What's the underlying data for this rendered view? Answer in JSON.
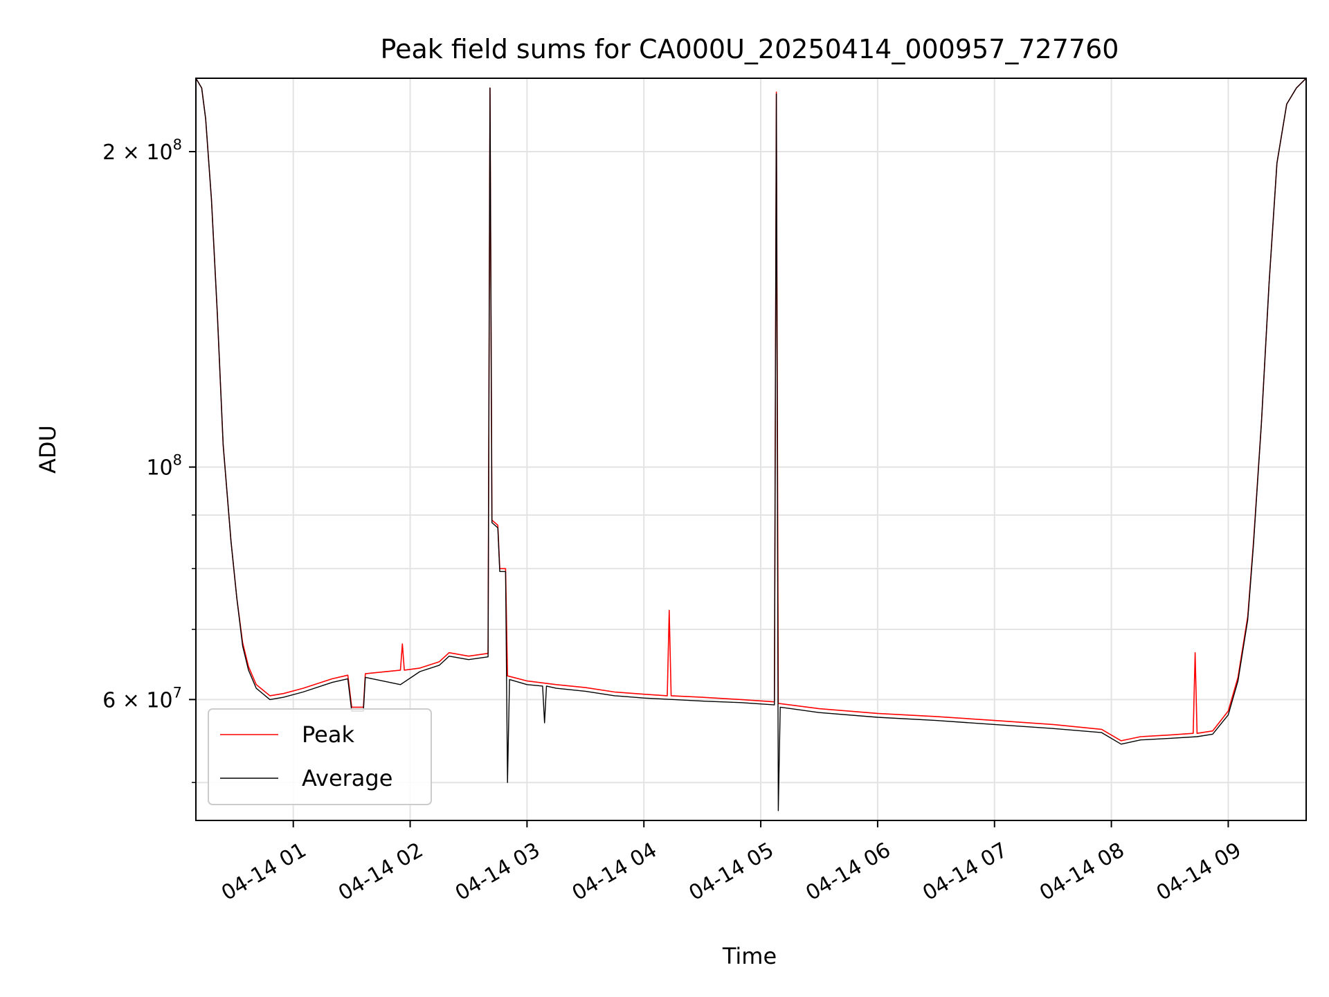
{
  "chart_data": {
    "type": "line",
    "title": "Peak field sums for CA000U_20250414_000957_727760",
    "xlabel": "Time",
    "ylabel": "ADU",
    "y_scale": "log",
    "ylim": [
      46000000,
      235000000
    ],
    "xlim": [
      "2025-04-14T00:10",
      "2025-04-14T09:40"
    ],
    "grid": true,
    "legend_position": "lower-left",
    "x_ticks": [
      {
        "time": "2025-04-14T01:00",
        "label": "04-14 01"
      },
      {
        "time": "2025-04-14T02:00",
        "label": "04-14 02"
      },
      {
        "time": "2025-04-14T03:00",
        "label": "04-14 03"
      },
      {
        "time": "2025-04-14T04:00",
        "label": "04-14 04"
      },
      {
        "time": "2025-04-14T05:00",
        "label": "04-14 05"
      },
      {
        "time": "2025-04-14T06:00",
        "label": "04-14 06"
      },
      {
        "time": "2025-04-14T07:00",
        "label": "04-14 07"
      },
      {
        "time": "2025-04-14T08:00",
        "label": "04-14 08"
      },
      {
        "time": "2025-04-14T09:00",
        "label": "04-14 09"
      }
    ],
    "y_major_ticks": [
      {
        "value": 60000000,
        "label_base": "6 × 10",
        "label_exp": "7"
      },
      {
        "value": 100000000,
        "label_base": "10",
        "label_exp": "8"
      },
      {
        "value": 200000000,
        "label_base": "2 × 10",
        "label_exp": "8"
      }
    ],
    "y_minor_ticks": [
      50000000,
      70000000,
      80000000,
      90000000
    ],
    "series": [
      {
        "name": "Peak",
        "color": "#ff0000",
        "points": [
          [
            "2025-04-14T00:10",
            235000000
          ],
          [
            "2025-04-14T00:13",
            230000000
          ],
          [
            "2025-04-14T00:15",
            215000000
          ],
          [
            "2025-04-14T00:18",
            180000000
          ],
          [
            "2025-04-14T00:21",
            140000000
          ],
          [
            "2025-04-14T00:24",
            105000000
          ],
          [
            "2025-04-14T00:28",
            85000000
          ],
          [
            "2025-04-14T00:31",
            75000000
          ],
          [
            "2025-04-14T00:34",
            68000000
          ],
          [
            "2025-04-14T00:37",
            64500000
          ],
          [
            "2025-04-14T00:41",
            62000000
          ],
          [
            "2025-04-14T00:48",
            60500000
          ],
          [
            "2025-04-14T00:55",
            60800000
          ],
          [
            "2025-04-14T01:05",
            61500000
          ],
          [
            "2025-04-14T01:20",
            62800000
          ],
          [
            "2025-04-14T01:28",
            63300000
          ],
          [
            "2025-04-14T01:30",
            59000000
          ],
          [
            "2025-04-14T01:36",
            59000000
          ],
          [
            "2025-04-14T01:37",
            63500000
          ],
          [
            "2025-04-14T01:55",
            64000000
          ],
          [
            "2025-04-14T01:56",
            67800000
          ],
          [
            "2025-04-14T01:57",
            64000000
          ],
          [
            "2025-04-14T02:05",
            64300000
          ],
          [
            "2025-04-14T02:15",
            65200000
          ],
          [
            "2025-04-14T02:20",
            66500000
          ],
          [
            "2025-04-14T02:30",
            66000000
          ],
          [
            "2025-04-14T02:40",
            66400000
          ],
          [
            "2025-04-14T02:41",
            230000000
          ],
          [
            "2025-04-14T02:42",
            89000000
          ],
          [
            "2025-04-14T02:45",
            88000000
          ],
          [
            "2025-04-14T02:46",
            80000000
          ],
          [
            "2025-04-14T02:49",
            80000000
          ],
          [
            "2025-04-14T02:50",
            63200000
          ],
          [
            "2025-04-14T03:00",
            62500000
          ],
          [
            "2025-04-14T03:15",
            62000000
          ],
          [
            "2025-04-14T03:30",
            61600000
          ],
          [
            "2025-04-14T03:45",
            61000000
          ],
          [
            "2025-04-14T04:00",
            60700000
          ],
          [
            "2025-04-14T04:12",
            60500000
          ],
          [
            "2025-04-14T04:13",
            73000000
          ],
          [
            "2025-04-14T04:14",
            60500000
          ],
          [
            "2025-04-14T04:30",
            60300000
          ],
          [
            "2025-04-14T04:50",
            60000000
          ],
          [
            "2025-04-14T05:07",
            59700000
          ],
          [
            "2025-04-14T05:08",
            228000000
          ],
          [
            "2025-04-14T05:09",
            59500000
          ],
          [
            "2025-04-14T05:30",
            58800000
          ],
          [
            "2025-04-14T06:00",
            58200000
          ],
          [
            "2025-04-14T06:30",
            57800000
          ],
          [
            "2025-04-14T07:00",
            57300000
          ],
          [
            "2025-04-14T07:30",
            56800000
          ],
          [
            "2025-04-14T07:55",
            56200000
          ],
          [
            "2025-04-14T08:05",
            54800000
          ],
          [
            "2025-04-14T08:15",
            55300000
          ],
          [
            "2025-04-14T08:30",
            55500000
          ],
          [
            "2025-04-14T08:42",
            55700000
          ],
          [
            "2025-04-14T08:43",
            66500000
          ],
          [
            "2025-04-14T08:44",
            55700000
          ],
          [
            "2025-04-14T08:52",
            56000000
          ],
          [
            "2025-04-14T09:00",
            58500000
          ],
          [
            "2025-04-14T09:05",
            63000000
          ],
          [
            "2025-04-14T09:10",
            72000000
          ],
          [
            "2025-04-14T09:13",
            85000000
          ],
          [
            "2025-04-14T09:17",
            110000000
          ],
          [
            "2025-04-14T09:21",
            150000000
          ],
          [
            "2025-04-14T09:25",
            195000000
          ],
          [
            "2025-04-14T09:30",
            222000000
          ],
          [
            "2025-04-14T09:35",
            230000000
          ],
          [
            "2025-04-14T09:40",
            235000000
          ]
        ]
      },
      {
        "name": "Average",
        "color": "#000000",
        "points": [
          [
            "2025-04-14T00:10",
            235000000
          ],
          [
            "2025-04-14T00:13",
            230000000
          ],
          [
            "2025-04-14T00:15",
            215000000
          ],
          [
            "2025-04-14T00:18",
            180000000
          ],
          [
            "2025-04-14T00:21",
            140000000
          ],
          [
            "2025-04-14T00:24",
            105000000
          ],
          [
            "2025-04-14T00:28",
            85000000
          ],
          [
            "2025-04-14T00:31",
            75000000
          ],
          [
            "2025-04-14T00:34",
            67500000
          ],
          [
            "2025-04-14T00:37",
            64000000
          ],
          [
            "2025-04-14T00:41",
            61500000
          ],
          [
            "2025-04-14T00:48",
            60000000
          ],
          [
            "2025-04-14T00:55",
            60300000
          ],
          [
            "2025-04-14T01:05",
            61000000
          ],
          [
            "2025-04-14T01:20",
            62300000
          ],
          [
            "2025-04-14T01:28",
            62800000
          ],
          [
            "2025-04-14T01:30",
            58500000
          ],
          [
            "2025-04-14T01:36",
            58500000
          ],
          [
            "2025-04-14T01:37",
            63000000
          ],
          [
            "2025-04-14T01:55",
            62000000
          ],
          [
            "2025-04-14T02:05",
            63800000
          ],
          [
            "2025-04-14T02:15",
            64700000
          ],
          [
            "2025-04-14T02:20",
            66000000
          ],
          [
            "2025-04-14T02:30",
            65500000
          ],
          [
            "2025-04-14T02:40",
            65900000
          ],
          [
            "2025-04-14T02:41",
            230000000
          ],
          [
            "2025-04-14T02:42",
            88500000
          ],
          [
            "2025-04-14T02:45",
            87500000
          ],
          [
            "2025-04-14T02:46",
            79500000
          ],
          [
            "2025-04-14T02:49",
            79500000
          ],
          [
            "2025-04-14T02:50",
            50000000
          ],
          [
            "2025-04-14T02:51",
            62700000
          ],
          [
            "2025-04-14T03:00",
            62000000
          ],
          [
            "2025-04-14T03:08",
            61800000
          ],
          [
            "2025-04-14T03:09",
            57000000
          ],
          [
            "2025-04-14T03:10",
            61800000
          ],
          [
            "2025-04-14T03:15",
            61500000
          ],
          [
            "2025-04-14T03:30",
            61100000
          ],
          [
            "2025-04-14T03:45",
            60500000
          ],
          [
            "2025-04-14T04:00",
            60200000
          ],
          [
            "2025-04-14T04:30",
            59800000
          ],
          [
            "2025-04-14T04:50",
            59600000
          ],
          [
            "2025-04-14T05:07",
            59300000
          ],
          [
            "2025-04-14T05:08",
            227000000
          ],
          [
            "2025-04-14T05:09",
            47000000
          ],
          [
            "2025-04-14T05:10",
            59000000
          ],
          [
            "2025-04-14T05:30",
            58300000
          ],
          [
            "2025-04-14T06:00",
            57700000
          ],
          [
            "2025-04-14T06:30",
            57300000
          ],
          [
            "2025-04-14T07:00",
            56800000
          ],
          [
            "2025-04-14T07:30",
            56300000
          ],
          [
            "2025-04-14T07:55",
            55800000
          ],
          [
            "2025-04-14T08:05",
            54400000
          ],
          [
            "2025-04-14T08:15",
            54900000
          ],
          [
            "2025-04-14T08:30",
            55100000
          ],
          [
            "2025-04-14T08:44",
            55300000
          ],
          [
            "2025-04-14T08:52",
            55600000
          ],
          [
            "2025-04-14T09:00",
            58000000
          ],
          [
            "2025-04-14T09:05",
            62500000
          ],
          [
            "2025-04-14T09:10",
            71500000
          ],
          [
            "2025-04-14T09:13",
            84500000
          ],
          [
            "2025-04-14T09:17",
            110000000
          ],
          [
            "2025-04-14T09:21",
            150000000
          ],
          [
            "2025-04-14T09:25",
            195000000
          ],
          [
            "2025-04-14T09:30",
            222000000
          ],
          [
            "2025-04-14T09:35",
            230000000
          ],
          [
            "2025-04-14T09:40",
            235000000
          ]
        ]
      }
    ]
  }
}
